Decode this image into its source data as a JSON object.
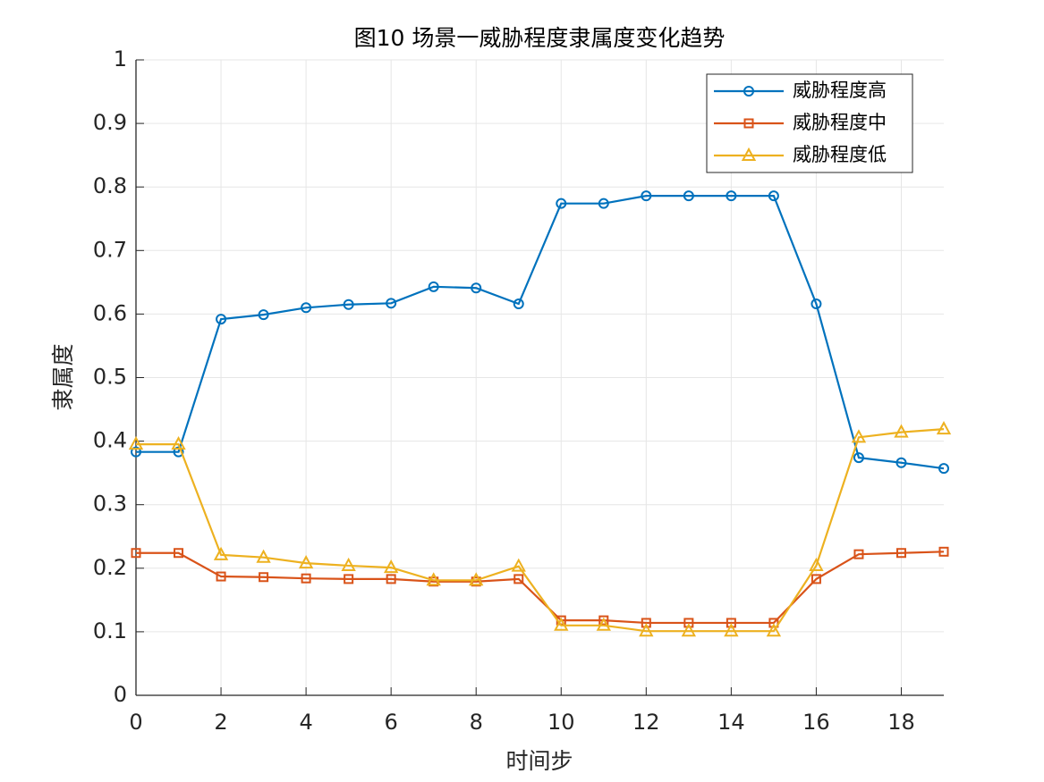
{
  "chart_data": {
    "type": "line",
    "title": "图10 场景一威胁程度隶属度变化趋势",
    "xlabel": "时间步",
    "ylabel": "隶属度",
    "x": [
      0,
      1,
      2,
      3,
      4,
      5,
      6,
      7,
      8,
      9,
      10,
      11,
      12,
      13,
      14,
      15,
      16,
      17,
      18,
      19
    ],
    "xlim": [
      0,
      19
    ],
    "xticks": [
      0,
      2,
      4,
      6,
      8,
      10,
      12,
      14,
      16,
      18
    ],
    "ylim": [
      0,
      1
    ],
    "yticks": [
      0,
      0.1,
      0.2,
      0.3,
      0.4,
      0.5,
      0.6,
      0.7,
      0.8,
      0.9,
      1
    ],
    "grid": true,
    "legend": "northeast",
    "series": [
      {
        "name": "威胁程度高",
        "color": "#0072BD",
        "marker": "o",
        "values": [
          0.383,
          0.383,
          0.592,
          0.599,
          0.61,
          0.615,
          0.617,
          0.643,
          0.641,
          0.616,
          0.774,
          0.774,
          0.786,
          0.786,
          0.786,
          0.786,
          0.616,
          0.374,
          0.366,
          0.357
        ]
      },
      {
        "name": "威胁程度中",
        "color": "#D95319",
        "marker": "s",
        "values": [
          0.224,
          0.224,
          0.187,
          0.186,
          0.184,
          0.183,
          0.183,
          0.179,
          0.179,
          0.183,
          0.118,
          0.118,
          0.114,
          0.114,
          0.114,
          0.114,
          0.183,
          0.222,
          0.224,
          0.226
        ]
      },
      {
        "name": "威胁程度低",
        "color": "#EDB120",
        "marker": "^",
        "values": [
          0.395,
          0.395,
          0.221,
          0.217,
          0.208,
          0.204,
          0.201,
          0.181,
          0.181,
          0.203,
          0.11,
          0.11,
          0.101,
          0.101,
          0.101,
          0.101,
          0.204,
          0.406,
          0.414,
          0.419
        ]
      }
    ]
  }
}
